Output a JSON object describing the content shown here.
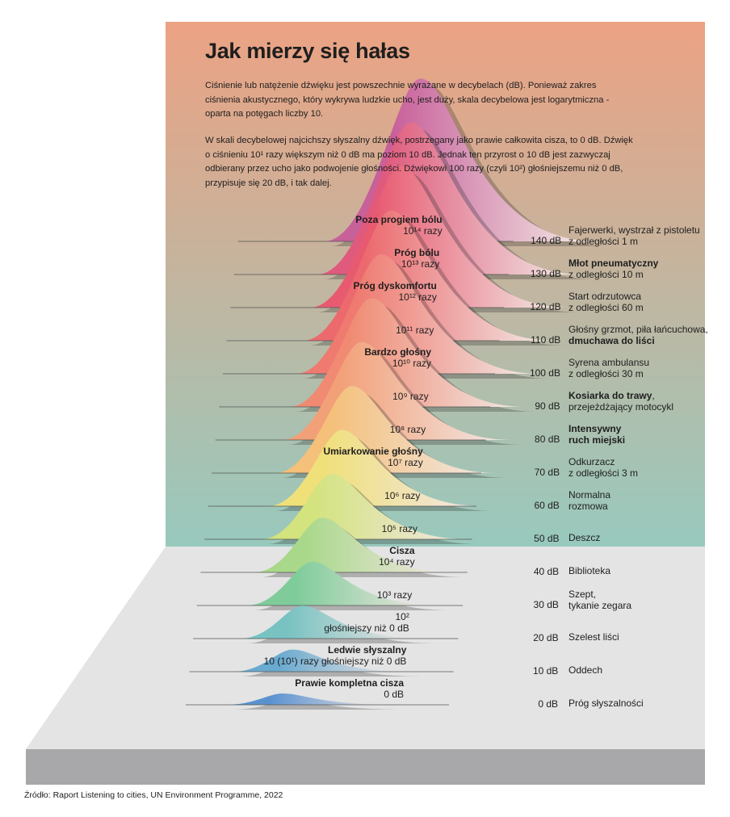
{
  "title": "Jak mierzy się hałas",
  "intro": [
    "Ciśnienie lub natężenie dźwięku jest powszechnie wyrażane w decybelach (dB). Ponieważ zakres ciśnienia akustycznego, który wykrywa ludzkie ucho, jest duży, skala decybelowa jest logarytmiczna - oparta na potęgach liczby 10.",
    "W skali decybelowej najcichszy słyszalny dźwięk, postrzegany jako prawie całkowita cisza, to 0 dB. Dźwięk o ciśnieniu 10¹ razy większym niż 0 dB ma poziom 10 dB. Jednak ten przyrost o 10 dB jest zazwyczaj odbierany przez ucho jako podwojenie głośności. Dźwiękowi 100 razy (czyli 10²) głośniejszemu niż 0 dB, przypisuje się 20 dB, i tak dalej."
  ],
  "levels": [
    {
      "db": 0,
      "db_label": "0 dB",
      "name": "Prawie kompletna cisza",
      "times": "0 dB",
      "example": [
        {
          "t": "Próg słyszalności",
          "b": false
        }
      ],
      "color": "#5a92d0"
    },
    {
      "db": 10,
      "db_label": "10 dB",
      "name": "Ledwie słyszalny",
      "times": "10 (10¹) razy głośniejszy niż 0 dB",
      "example": [
        {
          "t": "Oddech",
          "b": false
        }
      ],
      "color": "#6aaad0"
    },
    {
      "db": 20,
      "db_label": "20 dB",
      "name": "",
      "times2": [
        "10²",
        "głośniejszy niż 0 dB"
      ],
      "example": [
        {
          "t": "Szelest liści",
          "b": false
        }
      ],
      "color": "#78c2c2"
    },
    {
      "db": 30,
      "db_label": "30 dB",
      "name": "",
      "times": "10³ razy",
      "example": [
        {
          "t": "Szept,",
          "b": false
        },
        {
          "t": "tykanie zegara",
          "b": false
        }
      ],
      "color": "#7fcc9a"
    },
    {
      "db": 40,
      "db_label": "40 dB",
      "name": "Cisza",
      "times": "10⁴ razy",
      "example": [
        {
          "t": "Biblioteka",
          "b": false
        }
      ],
      "color": "#a9d88a"
    },
    {
      "db": 50,
      "db_label": "50 dB",
      "name": "",
      "times": "10⁵ razy",
      "example": [
        {
          "t": "Deszcz",
          "b": false
        }
      ],
      "color": "#d3e37e"
    },
    {
      "db": 60,
      "db_label": "60 dB",
      "name": "",
      "times": "10⁶ razy",
      "example": [
        {
          "t": "Normalna",
          "b": false
        },
        {
          "t": "rozmowa",
          "b": false
        }
      ],
      "color": "#f0e07a"
    },
    {
      "db": 70,
      "db_label": "70 dB",
      "name": "Umiarkowanie głośny",
      "times": "10⁷ razy",
      "example": [
        {
          "t": "Odkurzacz",
          "b": false
        },
        {
          "t": "z odległości 3 m",
          "b": false
        }
      ],
      "color": "#f4c07a"
    },
    {
      "db": 80,
      "db_label": "80 dB",
      "name": "",
      "times": "10⁸ razy",
      "example": [
        {
          "t": "Intensywny",
          "b": true
        },
        {
          "t": "ruch miejski",
          "b": true
        }
      ],
      "color": "#f2a078"
    },
    {
      "db": 90,
      "db_label": "90 dB",
      "name": "",
      "times": "10⁹ razy",
      "example": [
        {
          "t": "Kosiarka do trawy",
          "b": true,
          "suffix": ","
        },
        {
          "t": "przejeżdżający motocykl",
          "b": false
        }
      ],
      "color": "#f08a72"
    },
    {
      "db": 100,
      "db_label": "100 dB",
      "name": "Bardzo głośny",
      "times": "10¹⁰ razy",
      "example": [
        {
          "t": "Syrena ambulansu",
          "b": false
        },
        {
          "t": "z odległości 30 m",
          "b": false
        }
      ],
      "color": "#ef7a70"
    },
    {
      "db": 110,
      "db_label": "110 dB",
      "name": "",
      "times": "10¹¹ razy",
      "example": [
        {
          "t": "Głośny grzmot, piła łańcuchowa,",
          "b": false
        },
        {
          "t": "dmuchawa do liści",
          "b": true
        }
      ],
      "color": "#ec6a6e"
    },
    {
      "db": 120,
      "db_label": "120 dB",
      "name": "Próg dyskomfortu",
      "times": "10¹² razy",
      "example": [
        {
          "t": "Start odrzutowca",
          "b": false
        },
        {
          "t": "z odległości 60 m",
          "b": false
        }
      ],
      "color": "#e85a70"
    },
    {
      "db": 130,
      "db_label": "130 dB",
      "name": "Próg bólu",
      "times": "10¹³ razy",
      "example": [
        {
          "t": "Młot pneumatyczny",
          "b": true
        },
        {
          "t": "z odległości 10 m",
          "b": false
        }
      ],
      "color": "#df5a7c"
    },
    {
      "db": 140,
      "db_label": "140 dB",
      "name": "Poza progiem bólu",
      "times": "10¹⁴ razy",
      "example": [
        {
          "t": "Fajerwerki, wystrzał z pistoletu",
          "b": false
        },
        {
          "t": "z odległości 1 m",
          "b": false
        }
      ],
      "color": "#c8609a"
    }
  ],
  "colors": {
    "bg_top": "#eca283",
    "bg_bottom": "#98c9bd",
    "floor": "#e4e4e4",
    "base": "#a8a8aa"
  },
  "source": "Źródło: Raport Listening to cities, UN Environment Programme, 2022"
}
